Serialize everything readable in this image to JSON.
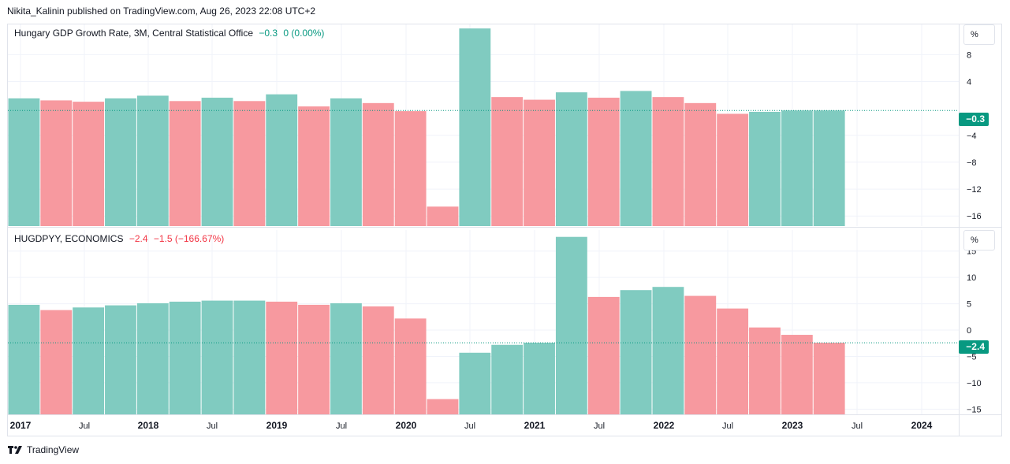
{
  "header": {
    "published": "Nikita_Kalinin published on TradingView.com, Aug 26, 2023 22:08 UTC+2"
  },
  "footer": {
    "brand": "TradingView"
  },
  "colors": {
    "up": "#089981",
    "down": "#f23645",
    "bar_up": "#80cbc0",
    "bar_down": "#f7999f"
  },
  "x_axis": {
    "ticks": [
      {
        "label": "2017",
        "year": true
      },
      {
        "label": "Jul",
        "year": false
      },
      {
        "label": "2018",
        "year": true
      },
      {
        "label": "Jul",
        "year": false
      },
      {
        "label": "2019",
        "year": true
      },
      {
        "label": "Jul",
        "year": false
      },
      {
        "label": "2020",
        "year": true
      },
      {
        "label": "Jul",
        "year": false
      },
      {
        "label": "2021",
        "year": true
      },
      {
        "label": "Jul",
        "year": false
      },
      {
        "label": "2022",
        "year": true
      },
      {
        "label": "Jul",
        "year": false
      },
      {
        "label": "2023",
        "year": true
      },
      {
        "label": "Jul",
        "year": false
      },
      {
        "label": "2024",
        "year": true
      }
    ]
  },
  "panels": [
    {
      "legend": {
        "name": "Hungary GDP Growth Rate, 3M, Central Statistical Office",
        "value": "−0.3",
        "change": "0 (0.00%)",
        "change_class": "pos"
      },
      "scale_label": "%",
      "last_value_label": "−0.3"
    },
    {
      "legend": {
        "name": "HUGDPYY, ECONOMICS",
        "value": "−2.4",
        "change": "−1.5 (−166.67%)",
        "change_class": "neg"
      },
      "scale_label": "%",
      "last_value_label": "−2.4"
    }
  ],
  "chart_data": [
    {
      "type": "bar",
      "ylim": [
        -17.5,
        12.5
      ],
      "yticks": [
        8,
        4,
        -4,
        -8,
        -12,
        -16
      ],
      "y_tick_labels": [
        "8",
        "4",
        "−4",
        "−8",
        "−12",
        "−16"
      ],
      "last_value": -0.3,
      "categories": [
        "2017 Q1",
        "2017 Q2",
        "2017 Q3",
        "2017 Q4",
        "2018 Q1",
        "2018 Q2",
        "2018 Q3",
        "2018 Q4",
        "2019 Q1",
        "2019 Q2",
        "2019 Q3",
        "2019 Q4",
        "2020 Q1",
        "2020 Q2",
        "2020 Q3",
        "2020 Q4",
        "2021 Q1",
        "2021 Q2",
        "2021 Q3",
        "2021 Q4",
        "2022 Q1",
        "2022 Q2",
        "2022 Q3",
        "2022 Q4",
        "2023 Q1",
        "2023 Q2"
      ],
      "values": [
        1.5,
        1.2,
        1.0,
        1.5,
        1.9,
        1.1,
        1.6,
        1.1,
        2.1,
        0.3,
        1.5,
        0.8,
        -0.4,
        -14.6,
        11.9,
        1.7,
        1.3,
        2.4,
        1.6,
        2.6,
        1.7,
        0.8,
        -0.8,
        -0.5,
        -0.3,
        -0.3
      ],
      "directions": [
        "up",
        "down",
        "down",
        "up",
        "up",
        "down",
        "up",
        "down",
        "up",
        "down",
        "up",
        "down",
        "down",
        "down",
        "up",
        "down",
        "down",
        "up",
        "down",
        "up",
        "down",
        "down",
        "down",
        "up",
        "up",
        "up"
      ]
    },
    {
      "type": "bar",
      "ylim": [
        -16,
        19
      ],
      "yticks": [
        15,
        10,
        5,
        0,
        -5,
        -10,
        -15
      ],
      "y_tick_labels": [
        "15",
        "10",
        "5",
        "0",
        "−5",
        "−10",
        "−15"
      ],
      "last_value": -2.4,
      "categories": [
        "2017 Q1",
        "2017 Q2",
        "2017 Q3",
        "2017 Q4",
        "2018 Q1",
        "2018 Q2",
        "2018 Q3",
        "2018 Q4",
        "2019 Q1",
        "2019 Q2",
        "2019 Q3",
        "2019 Q4",
        "2020 Q1",
        "2020 Q2",
        "2020 Q3",
        "2020 Q4",
        "2021 Q1",
        "2021 Q2",
        "2021 Q3",
        "2021 Q4",
        "2022 Q1",
        "2022 Q2",
        "2022 Q3",
        "2022 Q4",
        "2023 Q1",
        "2023 Q2"
      ],
      "values": [
        4.8,
        3.8,
        4.3,
        4.7,
        5.1,
        5.4,
        5.6,
        5.6,
        5.4,
        4.8,
        5.1,
        4.5,
        2.2,
        -13.1,
        -4.3,
        -2.8,
        -2.4,
        17.7,
        6.3,
        7.6,
        8.2,
        6.5,
        4.1,
        0.5,
        -0.9,
        -2.4
      ],
      "directions": [
        "up",
        "down",
        "up",
        "up",
        "up",
        "up",
        "up",
        "up",
        "down",
        "down",
        "up",
        "down",
        "down",
        "down",
        "up",
        "up",
        "up",
        "up",
        "down",
        "up",
        "up",
        "down",
        "down",
        "down",
        "down",
        "down"
      ]
    }
  ]
}
